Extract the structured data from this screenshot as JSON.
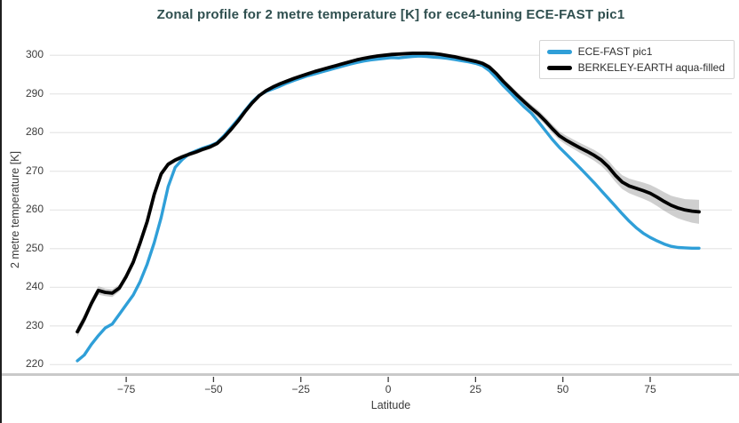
{
  "chart": {
    "title": "Zonal profile for 2 metre temperature [K] for ece4-tuning ECE-FAST pic1",
    "xlabel": "Latitude",
    "ylabel": "2 metre temperature [K]"
  },
  "colors": {
    "title": "#2f4f4f",
    "grid": "#e4e4e4",
    "spine": "#c9c9c9",
    "tick": "#3c3c3c",
    "blue_series": "#2f9fd8",
    "black_series": "#000000",
    "band": "#8c8c8c",
    "legend_border": "#d5d5d5"
  },
  "chart_data": {
    "type": "line",
    "title": "Zonal profile for 2 metre temperature [K] for ece4-tuning ECE-FAST pic1",
    "xlabel": "Latitude",
    "ylabel": "2 metre temperature [K]",
    "xlim": [
      -96.9,
      98.4
    ],
    "ylim": [
      218.4,
      303.9
    ],
    "grid": "horizontal-only",
    "legend_position": "top-right",
    "xticks": [
      {
        "v": -75,
        "label": "−75"
      },
      {
        "v": -50,
        "label": "−50"
      },
      {
        "v": -25,
        "label": "−25"
      },
      {
        "v": 0,
        "label": "0"
      },
      {
        "v": 25,
        "label": "25"
      },
      {
        "v": 50,
        "label": "50"
      },
      {
        "v": 75,
        "label": "75"
      }
    ],
    "yticks": [
      {
        "v": 220,
        "label": "220"
      },
      {
        "v": 230,
        "label": "230"
      },
      {
        "v": 240,
        "label": "240"
      },
      {
        "v": 250,
        "label": "250"
      },
      {
        "v": 260,
        "label": "260"
      },
      {
        "v": 270,
        "label": "270"
      },
      {
        "v": 280,
        "label": "280"
      },
      {
        "v": 290,
        "label": "290"
      },
      {
        "v": 300,
        "label": "300"
      }
    ],
    "x": [
      -89,
      -87,
      -85,
      -83,
      -81,
      -79,
      -77,
      -75,
      -73,
      -71,
      -69,
      -67,
      -65,
      -63,
      -61,
      -59,
      -57,
      -55,
      -53,
      -51,
      -49,
      -47,
      -45,
      -43,
      -41,
      -39,
      -37,
      -35,
      -33,
      -31,
      -29,
      -27,
      -25,
      -23,
      -21,
      -19,
      -17,
      -15,
      -13,
      -11,
      -9,
      -7,
      -5,
      -3,
      -1,
      1,
      3,
      5,
      7,
      9,
      11,
      13,
      15,
      17,
      19,
      21,
      23,
      25,
      27,
      29,
      31,
      33,
      35,
      37,
      39,
      41,
      43,
      45,
      47,
      49,
      51,
      53,
      55,
      57,
      59,
      61,
      63,
      65,
      67,
      69,
      71,
      73,
      75,
      77,
      79,
      81,
      83,
      85,
      87,
      89
    ],
    "series": [
      {
        "name": "ECE-FAST pic1",
        "color": "#2f9fd8",
        "width": 3.4,
        "values": [
          221.0,
          222.5,
          225.2,
          227.5,
          229.5,
          230.5,
          233.0,
          235.5,
          238.0,
          241.5,
          246.0,
          251.5,
          258.0,
          266.0,
          271.0,
          273.0,
          274.5,
          275.3,
          276.0,
          276.6,
          277.4,
          279.2,
          281.3,
          283.4,
          285.7,
          287.9,
          289.6,
          290.6,
          291.3,
          292.0,
          292.8,
          293.5,
          294.1,
          294.7,
          295.2,
          295.7,
          296.2,
          296.7,
          297.2,
          297.7,
          298.1,
          298.5,
          298.8,
          299.0,
          299.2,
          299.4,
          299.3,
          299.5,
          299.7,
          299.8,
          299.7,
          299.5,
          299.4,
          299.2,
          298.9,
          298.6,
          298.3,
          297.9,
          297.3,
          296.0,
          294.1,
          292.1,
          290.3,
          288.4,
          286.6,
          285.0,
          282.8,
          280.5,
          278.2,
          276.2,
          274.4,
          272.6,
          270.8,
          268.9,
          267.0,
          265.0,
          263.0,
          261.0,
          259.0,
          257.1,
          255.4,
          254.0,
          252.9,
          252.0,
          251.2,
          250.6,
          250.3,
          250.2,
          250.1,
          250.1
        ]
      },
      {
        "name": "BERKELEY-EARTH aqua-filled",
        "color": "#000000",
        "width": 3.8,
        "band_color": "#8c8c8c",
        "band_opacity": 0.42,
        "values": [
          228.5,
          231.8,
          235.8,
          239.2,
          238.7,
          238.5,
          239.8,
          242.8,
          246.5,
          251.5,
          257.0,
          264.0,
          269.3,
          271.8,
          272.9,
          273.7,
          274.4,
          275.0,
          275.7,
          276.3,
          277.2,
          278.8,
          280.8,
          283.0,
          285.4,
          287.6,
          289.5,
          290.8,
          291.8,
          292.6,
          293.3,
          294.0,
          294.6,
          295.2,
          295.8,
          296.3,
          296.8,
          297.3,
          297.8,
          298.3,
          298.8,
          299.2,
          299.5,
          299.8,
          300.0,
          300.2,
          300.3,
          300.4,
          300.5,
          300.5,
          300.5,
          300.4,
          300.2,
          299.9,
          299.6,
          299.2,
          298.8,
          298.4,
          297.9,
          296.9,
          295.2,
          293.2,
          291.4,
          289.6,
          287.9,
          286.3,
          284.8,
          283.0,
          281.0,
          279.2,
          278.0,
          277.0,
          276.0,
          275.1,
          274.1,
          272.9,
          271.2,
          269.0,
          267.2,
          266.2,
          265.6,
          265.0,
          264.3,
          263.3,
          262.2,
          261.2,
          260.5,
          260.0,
          259.7,
          259.5
        ],
        "band_halfwidth": [
          1.3,
          1.2,
          1.1,
          1.1,
          1.0,
          1.0,
          0.9,
          0.9,
          0.8,
          0.8,
          0.8,
          0.8,
          0.8,
          0.7,
          0.6,
          0.6,
          0.6,
          0.6,
          0.6,
          0.6,
          0.6,
          0.6,
          0.6,
          0.5,
          0.5,
          0.5,
          0.5,
          0.5,
          0.5,
          0.5,
          0.5,
          0.5,
          0.5,
          0.5,
          0.5,
          0.5,
          0.5,
          0.5,
          0.5,
          0.5,
          0.5,
          0.5,
          0.5,
          0.5,
          0.5,
          0.5,
          0.5,
          0.5,
          0.5,
          0.5,
          0.5,
          0.5,
          0.5,
          0.5,
          0.5,
          0.6,
          0.6,
          0.6,
          0.6,
          0.7,
          0.7,
          0.7,
          0.8,
          0.8,
          0.9,
          0.9,
          1.0,
          1.0,
          1.1,
          1.1,
          1.2,
          1.2,
          1.3,
          1.3,
          1.4,
          1.5,
          1.6,
          1.7,
          1.8,
          1.9,
          2.0,
          2.1,
          2.2,
          2.3,
          2.4,
          2.5,
          2.7,
          2.8,
          3.0,
          3.1
        ]
      }
    ]
  }
}
